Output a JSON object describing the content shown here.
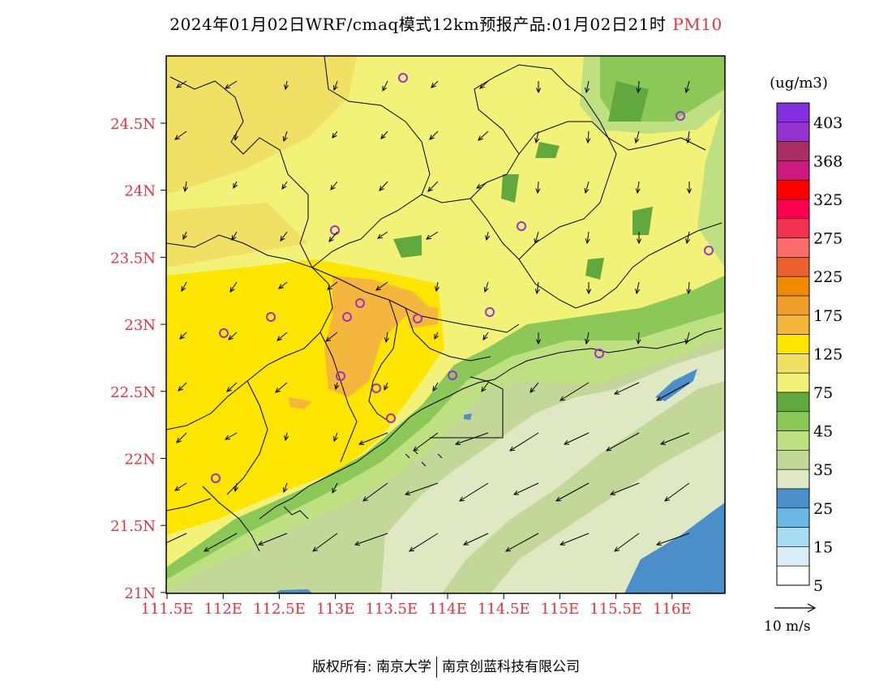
{
  "title": {
    "main": "2024年01月02日WRF/cmaq模式12km预报产品:01月02日21时",
    "variable": "PM10"
  },
  "colorbar": {
    "unit": "(ug/m3)",
    "bands": [
      "#ffffff",
      "#d9eef9",
      "#a8dcf2",
      "#6cb8e4",
      "#4a8fc7",
      "#dee8c3",
      "#c3d898",
      "#bfe080",
      "#8cc858",
      "#61a83f",
      "#f2f279",
      "#f0e064",
      "#fde500",
      "#f4b63c",
      "#f0a02a",
      "#f08a00",
      "#ec6030",
      "#fd6c6c",
      "#f23250",
      "#fb0050",
      "#ff0000",
      "#cc1a80",
      "#a82e64",
      "#9632d2",
      "#8430e0"
    ],
    "labels": [
      "5",
      "15",
      "25",
      "35",
      "45",
      "75",
      "125",
      "175",
      "225",
      "275",
      "325",
      "368",
      "403"
    ]
  },
  "wind_legend": {
    "label": "10 m/s"
  },
  "map": {
    "lat_labels": [
      "24.5N",
      "24N",
      "23.5N",
      "23N",
      "22.5N",
      "22N",
      "21.5N",
      "21N"
    ],
    "lon_labels": [
      "111.5E",
      "112E",
      "112.5E",
      "113E",
      "113.5E",
      "114E",
      "114.5E",
      "115E",
      "115.5E",
      "116E"
    ],
    "axis_label_color": "#e8323c"
  },
  "copyright": {
    "left": "版权所有: 南京大学",
    "right": "南京创蓝科技有限公司"
  }
}
